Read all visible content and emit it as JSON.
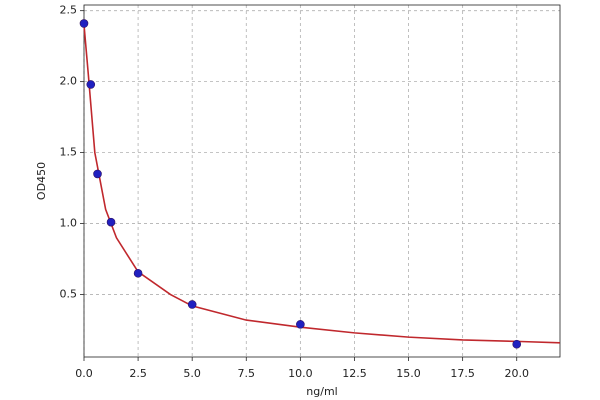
{
  "chart_data": {
    "type": "scatter",
    "xlabel": "ng/ml",
    "ylabel": "OD450",
    "xlim": [
      0,
      22
    ],
    "ylim": [
      0.06,
      2.54
    ],
    "xticks": [
      {
        "value": 0,
        "label": "0.0"
      },
      2.5,
      {
        "value": 5,
        "label": "5.0"
      },
      7.5,
      {
        "value": 10,
        "label": "10.0"
      },
      12.5,
      {
        "value": 15,
        "label": "15.0"
      },
      17.5,
      {
        "value": 20,
        "label": "20.0"
      }
    ],
    "yticks": [
      0.5,
      {
        "value": 1,
        "label": "1.0"
      },
      1.5,
      {
        "value": 2,
        "label": "2.0"
      },
      2.5
    ],
    "grid": true,
    "series": [
      {
        "type": "line",
        "color": "#c0282d",
        "x": [
          0,
          0.2,
          0.5,
          1,
          1.5,
          2.5,
          4,
          5,
          7.5,
          10,
          12.5,
          15,
          17.5,
          20,
          22
        ],
        "values": [
          2.4,
          2.05,
          1.5,
          1.1,
          0.9,
          0.66,
          0.5,
          0.42,
          0.32,
          0.27,
          0.23,
          0.2,
          0.18,
          0.17,
          0.16
        ]
      },
      {
        "type": "scatter",
        "color": "#2020c0",
        "x": [
          0,
          0.313,
          0.625,
          1.25,
          2.5,
          5,
          10,
          20
        ],
        "values": [
          2.41,
          1.98,
          1.35,
          1.01,
          0.65,
          0.43,
          0.29,
          0.15
        ]
      }
    ]
  }
}
